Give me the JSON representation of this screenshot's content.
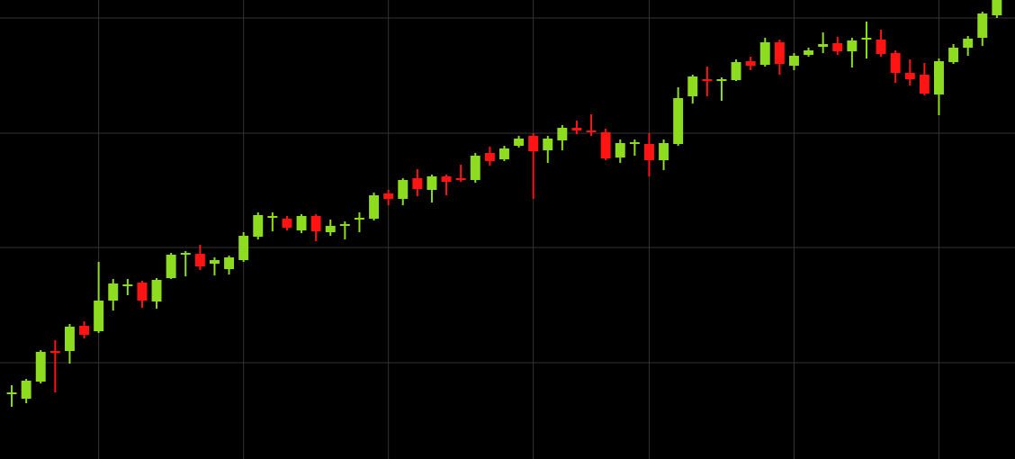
{
  "chart_data": {
    "type": "candlestick",
    "x": [
      0,
      1,
      2,
      3,
      4,
      5,
      6,
      7,
      8,
      9,
      10,
      11,
      12,
      13,
      14,
      15,
      16,
      17,
      18,
      19,
      20,
      21,
      22,
      23,
      24,
      25,
      26,
      27,
      28,
      29,
      30,
      31,
      32,
      33,
      34,
      35,
      36,
      37,
      38,
      39,
      40,
      41,
      42,
      43,
      44,
      45,
      46,
      47,
      48,
      49,
      50,
      51,
      52,
      53,
      54,
      55,
      56,
      57,
      58,
      59,
      60,
      61,
      62,
      63,
      64,
      65,
      66,
      67,
      68
    ],
    "open": [
      72,
      67,
      86,
      120,
      120,
      148,
      142,
      176,
      192,
      196,
      175,
      201,
      227,
      228,
      217,
      211,
      221,
      247,
      268,
      267,
      254,
      270,
      252,
      259,
      266,
      267,
      295,
      289,
      312,
      299,
      314,
      312,
      310,
      340,
      333,
      348,
      359,
      343,
      354,
      368,
      365,
      363,
      335,
      350,
      350,
      332,
      350,
      403,
      422,
      420,
      421,
      442,
      438,
      463,
      437,
      449,
      458,
      462,
      453,
      466,
      466,
      451,
      429,
      427,
      405,
      441,
      457,
      468,
      493
    ],
    "high": [
      82,
      89,
      121,
      132,
      150,
      153,
      219,
      200,
      200,
      198,
      201,
      229,
      231,
      238,
      224,
      226,
      252,
      274,
      274,
      270,
      272,
      272,
      266,
      264,
      274,
      296,
      299,
      312,
      322,
      316,
      316,
      327,
      340,
      347,
      348,
      359,
      362,
      359,
      371,
      376,
      383,
      367,
      355,
      355,
      362,
      355,
      413,
      427,
      436,
      424,
      444,
      447,
      468,
      466,
      451,
      457,
      474,
      469,
      468,
      486,
      477,
      454,
      444,
      440,
      445,
      461,
      470,
      497,
      510
    ],
    "low": [
      58,
      62,
      84,
      74,
      106,
      134,
      140,
      165,
      182,
      168,
      167,
      200,
      203,
      210,
      204,
      205,
      219,
      244,
      253,
      254,
      251,
      242,
      248,
      244,
      252,
      265,
      282,
      282,
      292,
      285,
      293,
      308,
      307,
      326,
      331,
      346,
      289,
      329,
      343,
      361,
      359,
      332,
      329,
      337,
      314,
      321,
      348,
      395,
      403,
      398,
      420,
      432,
      436,
      427,
      432,
      447,
      451,
      449,
      435,
      445,
      447,
      418,
      415,
      404,
      382,
      439,
      448,
      459,
      490
    ],
    "close": [
      74,
      87,
      119,
      118,
      147,
      138,
      176,
      195,
      194,
      176,
      199,
      227,
      229,
      214,
      221,
      224,
      248,
      271,
      270,
      257,
      270,
      253,
      259,
      261,
      268,
      293,
      289,
      310,
      300,
      314,
      308,
      310,
      337,
      331,
      345,
      356,
      342,
      356,
      368,
      365,
      364,
      334,
      351,
      352,
      332,
      351,
      401,
      425,
      421,
      422,
      441,
      437,
      463,
      439,
      448,
      454,
      461,
      453,
      465,
      468,
      450,
      429,
      422,
      406,
      442,
      457,
      467,
      495,
      510
    ],
    "up_color": "#8ddc1f",
    "down_color": "#ff1414",
    "xlim": [
      -0.81,
      69.25
    ],
    "xticks": [
      6,
      16,
      26,
      36,
      44,
      54,
      64
    ],
    "ylim": [
      0,
      510
    ],
    "yticks": [
      107,
      235,
      362,
      490
    ],
    "grid": true
  }
}
